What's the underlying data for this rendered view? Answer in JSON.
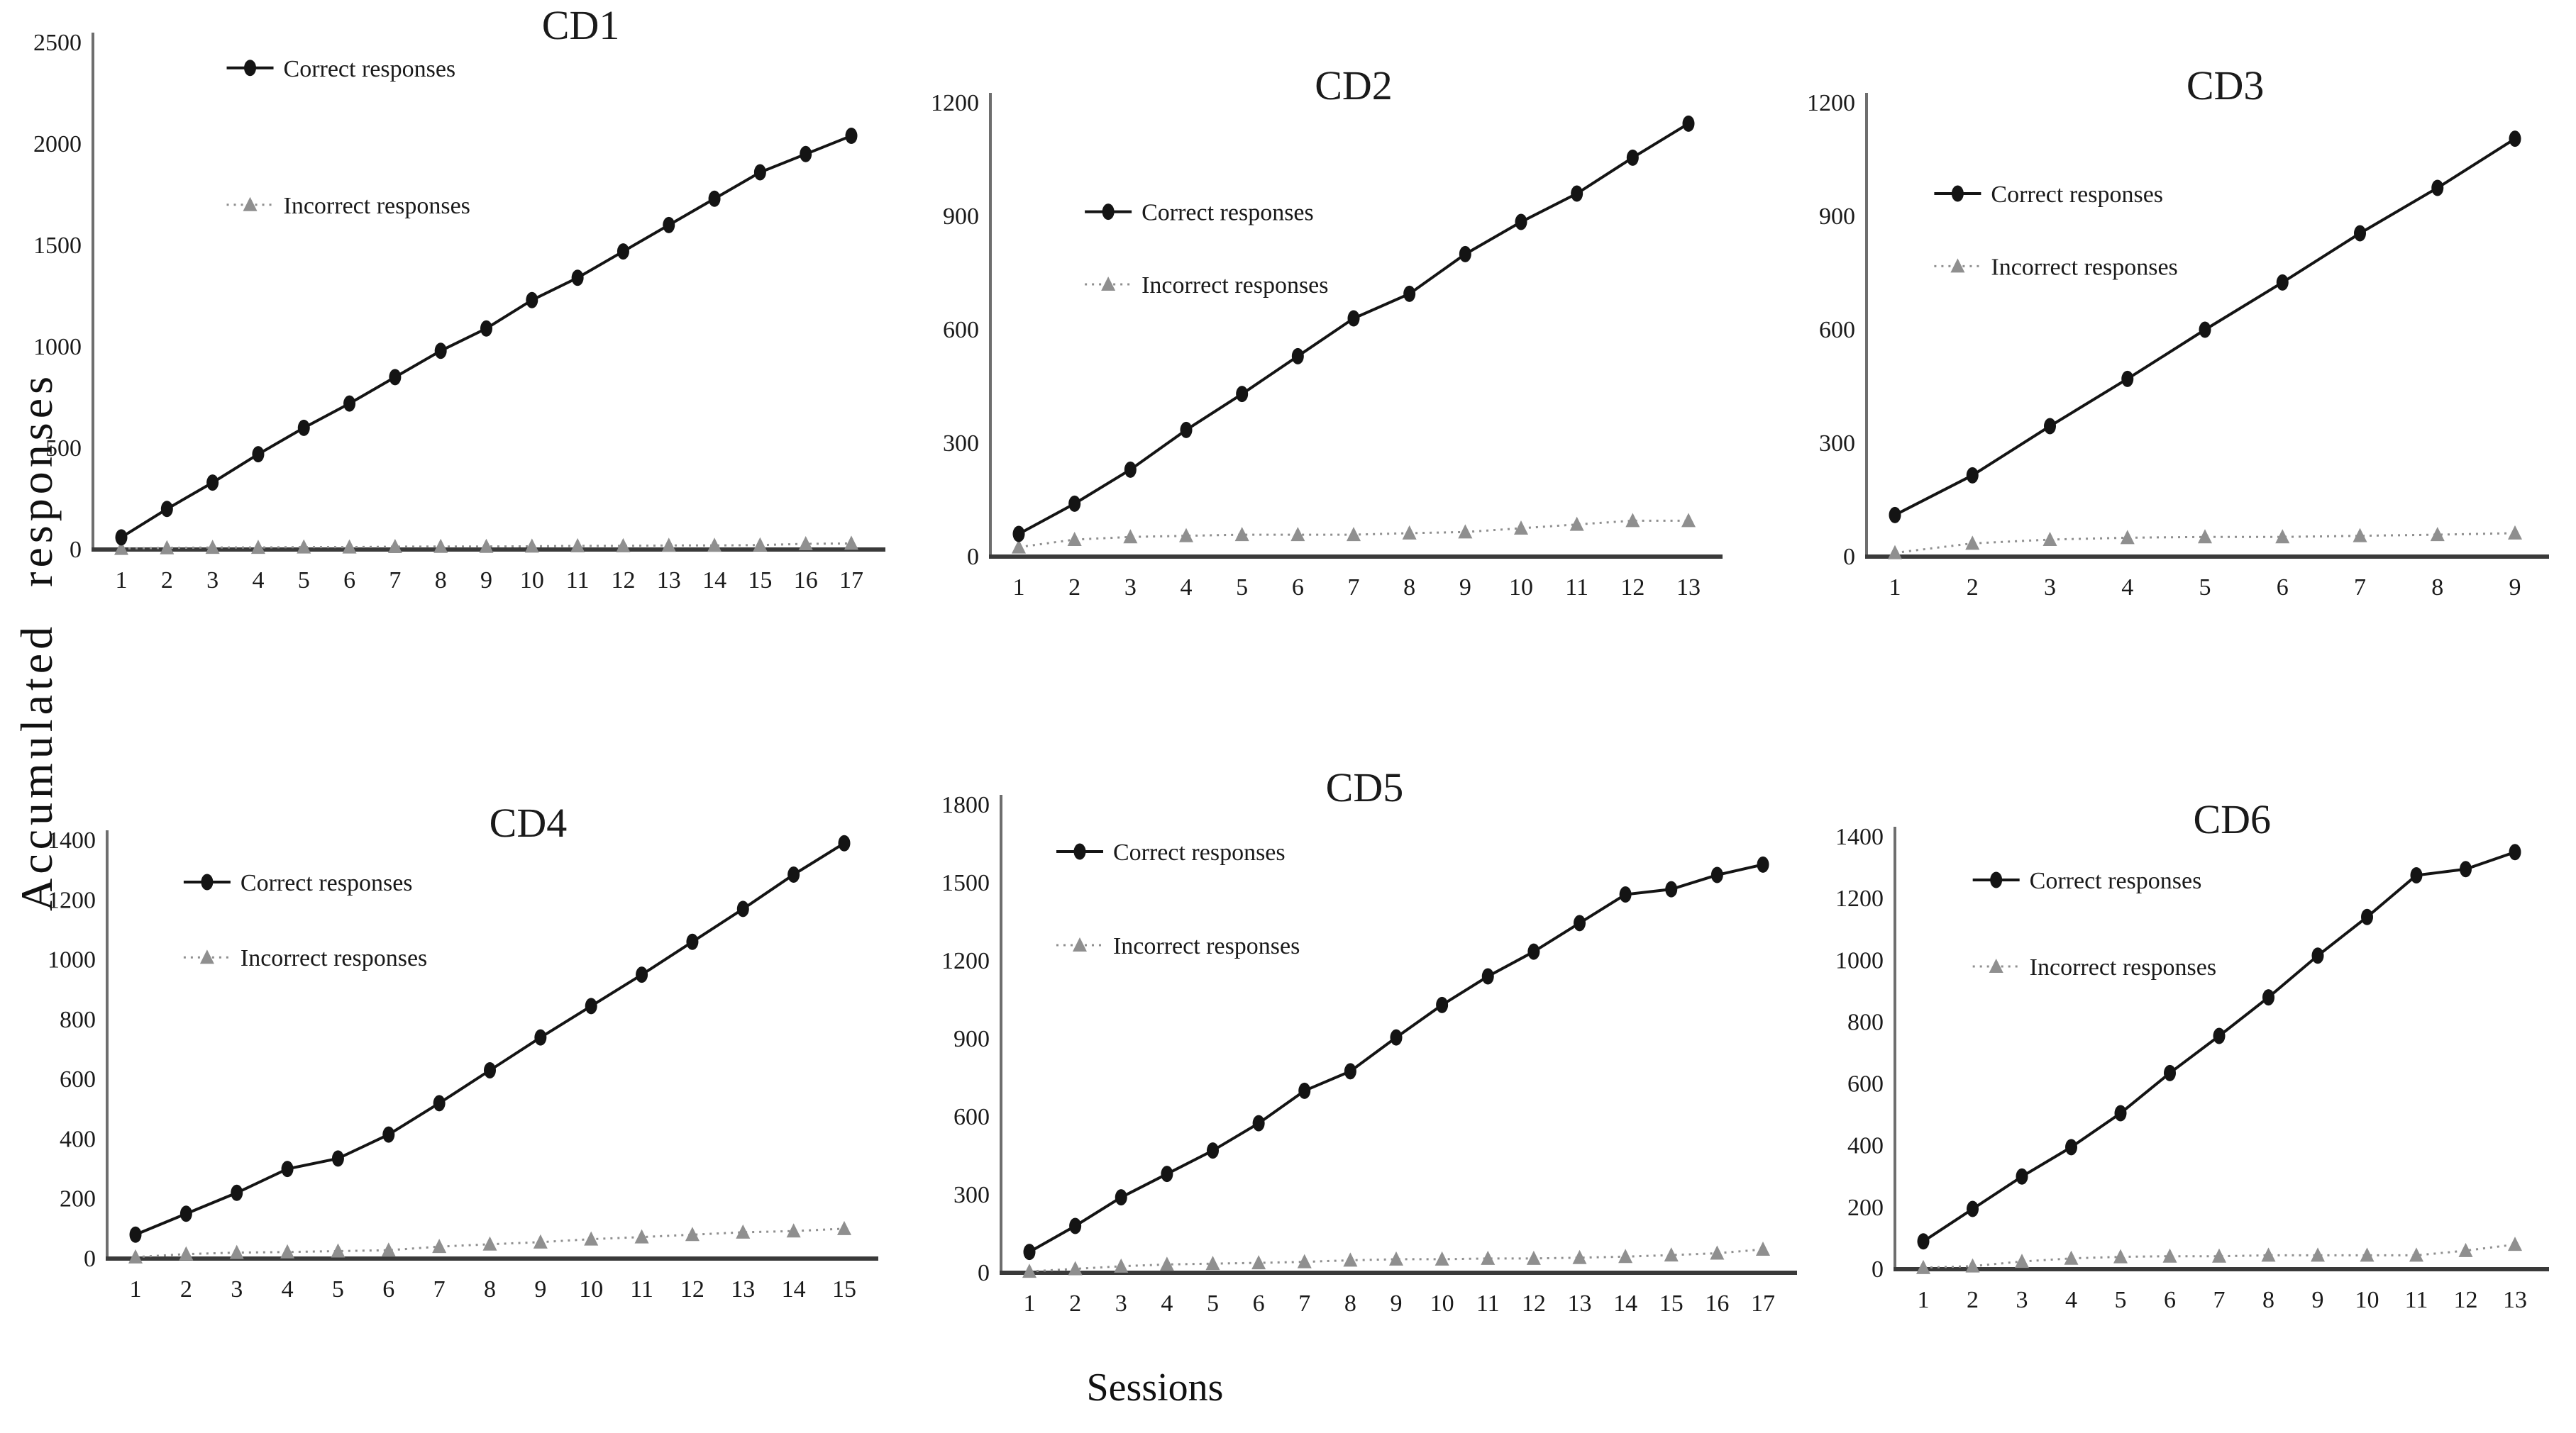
{
  "figure": {
    "ylabel": "Accumulated responses",
    "xlabel": "Sessions"
  },
  "palette": {
    "correct": "#141414",
    "incorrect": "#8f8f8f",
    "axis_y": "#6e6e6e",
    "axis_x": "#3a3a3a"
  },
  "chart_data": [
    {
      "id": "cd1",
      "type": "line",
      "title": "CD1",
      "categories": [
        1,
        2,
        3,
        4,
        5,
        6,
        7,
        8,
        9,
        10,
        11,
        12,
        13,
        14,
        15,
        16,
        17
      ],
      "series": [
        {
          "name": "Correct responses",
          "values": [
            60,
            200,
            330,
            470,
            600,
            720,
            850,
            980,
            1090,
            1230,
            1340,
            1470,
            1600,
            1730,
            1860,
            1950,
            2040
          ]
        },
        {
          "name": "Incorrect responses",
          "values": [
            5,
            8,
            10,
            10,
            12,
            12,
            14,
            15,
            15,
            16,
            18,
            18,
            20,
            20,
            22,
            28,
            30
          ]
        }
      ],
      "ylim": [
        0,
        2500
      ],
      "yticks": [
        0,
        500,
        1000,
        1500,
        2000,
        2500
      ],
      "legend_pos": {
        "x": 0.17,
        "y1": 0.05,
        "y2": 0.32
      },
      "title_x": 0.62
    },
    {
      "id": "cd2",
      "type": "line",
      "title": "CD2",
      "categories": [
        1,
        2,
        3,
        4,
        5,
        6,
        7,
        8,
        9,
        10,
        11,
        12,
        13
      ],
      "series": [
        {
          "name": "Correct responses",
          "values": [
            60,
            140,
            230,
            335,
            430,
            530,
            630,
            695,
            800,
            885,
            960,
            1055,
            1145
          ]
        },
        {
          "name": "Incorrect responses",
          "values": [
            25,
            45,
            52,
            55,
            58,
            58,
            58,
            62,
            65,
            75,
            85,
            95,
            95
          ]
        }
      ],
      "ylim": [
        0,
        1200
      ],
      "yticks": [
        0,
        300,
        600,
        900,
        1200
      ],
      "legend_pos": {
        "x": 0.13,
        "y1": 0.24,
        "y2": 0.4
      },
      "title_x": 0.5
    },
    {
      "id": "cd3",
      "type": "line",
      "title": "CD3",
      "categories": [
        1,
        2,
        3,
        4,
        5,
        6,
        7,
        8,
        9
      ],
      "series": [
        {
          "name": "Correct responses",
          "values": [
            110,
            215,
            345,
            470,
            600,
            725,
            855,
            975,
            1105
          ]
        },
        {
          "name": "Incorrect responses",
          "values": [
            10,
            35,
            45,
            50,
            52,
            52,
            55,
            58,
            62
          ]
        }
      ],
      "ylim": [
        0,
        1200
      ],
      "yticks": [
        0,
        300,
        600,
        900,
        1200
      ],
      "legend_pos": {
        "x": 0.1,
        "y1": 0.2,
        "y2": 0.36
      },
      "title_x": 0.53
    },
    {
      "id": "cd4",
      "type": "line",
      "title": "CD4",
      "categories": [
        1,
        2,
        3,
        4,
        5,
        6,
        7,
        8,
        9,
        10,
        11,
        12,
        13,
        14,
        15
      ],
      "series": [
        {
          "name": "Correct responses",
          "values": [
            80,
            150,
            220,
            300,
            335,
            415,
            520,
            630,
            740,
            845,
            950,
            1060,
            1170,
            1285,
            1390
          ]
        },
        {
          "name": "Incorrect responses",
          "values": [
            5,
            15,
            20,
            22,
            25,
            28,
            40,
            48,
            55,
            65,
            72,
            80,
            88,
            92,
            100
          ]
        }
      ],
      "ylim": [
        0,
        1400
      ],
      "yticks": [
        0,
        200,
        400,
        600,
        800,
        1000,
        1200,
        1400
      ],
      "legend_pos": {
        "x": 0.1,
        "y1": 0.1,
        "y2": 0.28
      },
      "title_x": 0.55
    },
    {
      "id": "cd5",
      "type": "line",
      "title": "CD5",
      "categories": [
        1,
        2,
        3,
        4,
        5,
        6,
        7,
        8,
        9,
        10,
        11,
        12,
        13,
        14,
        15,
        16,
        17
      ],
      "series": [
        {
          "name": "Correct responses",
          "values": [
            80,
            180,
            290,
            380,
            470,
            575,
            700,
            775,
            905,
            1030,
            1140,
            1235,
            1345,
            1455,
            1475,
            1530,
            1570
          ]
        },
        {
          "name": "Incorrect responses",
          "values": [
            5,
            15,
            25,
            32,
            35,
            38,
            42,
            48,
            52,
            52,
            55,
            55,
            58,
            62,
            68,
            75,
            90
          ]
        }
      ],
      "ylim": [
        0,
        1800
      ],
      "yticks": [
        0,
        300,
        600,
        900,
        1200,
        1500,
        1800
      ],
      "legend_pos": {
        "x": 0.07,
        "y1": 0.1,
        "y2": 0.3
      },
      "title_x": 0.46
    },
    {
      "id": "cd6",
      "type": "line",
      "title": "CD6",
      "categories": [
        1,
        2,
        3,
        4,
        5,
        6,
        7,
        8,
        9,
        10,
        11,
        12,
        13
      ],
      "series": [
        {
          "name": "Correct responses",
          "values": [
            90,
            195,
            300,
            395,
            505,
            635,
            755,
            880,
            1015,
            1140,
            1275,
            1295,
            1350
          ]
        },
        {
          "name": "Incorrect responses",
          "values": [
            5,
            10,
            25,
            35,
            40,
            42,
            42,
            45,
            45,
            45,
            45,
            60,
            80
          ]
        }
      ],
      "ylim": [
        0,
        1400
      ],
      "yticks": [
        0,
        200,
        400,
        600,
        800,
        1000,
        1200,
        1400
      ],
      "legend_pos": {
        "x": 0.12,
        "y1": 0.1,
        "y2": 0.3
      },
      "title_x": 0.52
    }
  ]
}
